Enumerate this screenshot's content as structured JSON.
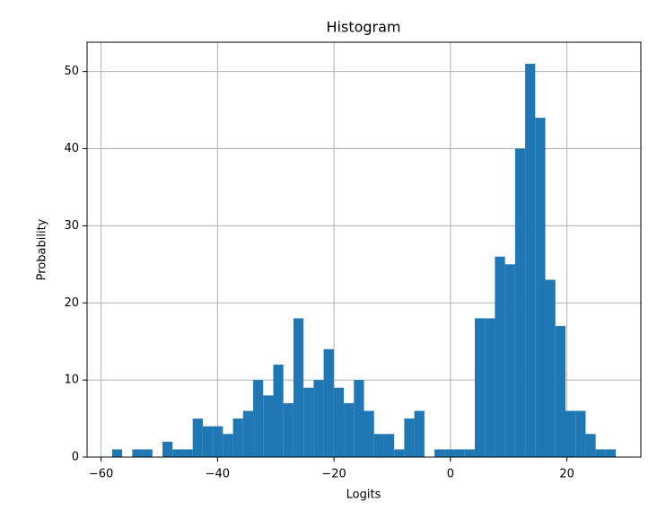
{
  "chart_data": {
    "type": "histogram",
    "title": "Histogram",
    "x_label": "Logits",
    "y_label": "Probability",
    "bins": [
      -58.1,
      -56.37,
      -54.64,
      -52.91,
      -51.18,
      -49.45,
      -47.72,
      -45.99,
      -44.26,
      -42.53,
      -40.8,
      -39.07,
      -37.34,
      -35.61,
      -33.88,
      -32.15,
      -30.42,
      -28.69,
      -26.96,
      -25.23,
      -23.5,
      -21.77,
      -20.04,
      -18.31,
      -16.58,
      -14.85,
      -13.12,
      -11.39,
      -9.66,
      -7.93,
      -6.2,
      -4.47,
      -2.74,
      -1.01,
      0.72,
      2.45,
      4.18,
      5.91,
      7.64,
      9.37,
      11.1,
      12.83,
      14.56,
      16.29,
      18.02,
      19.75,
      21.48,
      23.21,
      24.94,
      26.67,
      28.4
    ],
    "values": [
      1,
      0,
      1,
      1,
      0,
      2,
      1,
      1,
      5,
      4,
      4,
      3,
      5,
      6,
      10,
      8,
      12,
      7,
      18,
      9,
      10,
      14,
      9,
      7,
      10,
      6,
      3,
      3,
      1,
      5,
      6,
      0,
      1,
      1,
      1,
      1,
      18,
      18,
      26,
      25,
      40,
      51,
      44,
      23,
      17,
      6,
      6,
      3,
      1,
      1
    ],
    "color": "#1f77b4",
    "xlim": [
      -62.4,
      32.7
    ],
    "ylim": [
      0,
      53.8
    ],
    "xticks": [
      {
        "value": -60,
        "label": "−60"
      },
      {
        "value": -40,
        "label": "−40"
      },
      {
        "value": -20,
        "label": "−20"
      },
      0,
      20
    ],
    "yticks": [
      0,
      10,
      20,
      30,
      40,
      50
    ],
    "grid": true
  }
}
